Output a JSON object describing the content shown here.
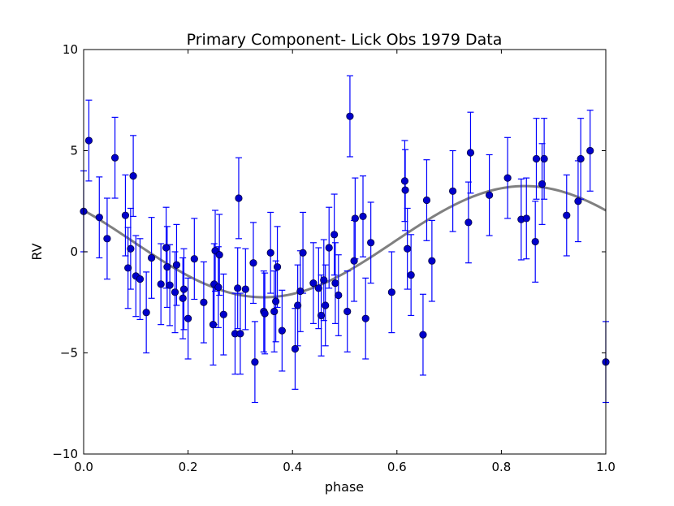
{
  "chart_data": {
    "type": "scatter",
    "title": "Primary Component- Lick Obs 1979 Data",
    "xlabel": "phase",
    "ylabel": "RV",
    "xlim": [
      0.0,
      1.0
    ],
    "ylim": [
      -10,
      10
    ],
    "xticks": [
      0.0,
      0.2,
      0.4,
      0.6,
      0.8,
      1.0
    ],
    "xtick_labels": [
      "0.0",
      "0.2",
      "0.4",
      "0.6",
      "0.8",
      "1.0"
    ],
    "yticks": [
      -10,
      -5,
      0,
      5,
      10
    ],
    "ytick_labels": [
      "−10",
      "−5",
      "0",
      "5",
      "10"
    ],
    "grid": false,
    "colors": {
      "points": "#0000cc",
      "errorbars": "#0000ff",
      "fit": "#808080",
      "axes": "#000000"
    },
    "fit_curve": {
      "offset": 0.5,
      "amplitude": 2.75,
      "phase_of_max": 0.845
    },
    "series": [
      {
        "x": [
          0.0,
          0.01,
          0.03,
          0.045,
          0.06,
          0.08,
          0.085,
          0.09,
          0.095,
          0.1,
          0.108,
          0.12,
          0.13,
          0.148,
          0.158,
          0.16,
          0.165,
          0.175,
          0.178,
          0.19,
          0.192,
          0.2,
          0.212,
          0.23,
          0.248,
          0.25,
          0.252,
          0.258,
          0.26,
          0.268,
          0.29,
          0.295,
          0.297,
          0.3,
          0.31,
          0.325,
          0.328,
          0.345,
          0.347,
          0.358,
          0.365,
          0.368,
          0.371,
          0.38,
          0.405,
          0.41,
          0.415,
          0.42,
          0.44,
          0.45,
          0.455,
          0.46,
          0.463,
          0.47,
          0.48,
          0.482,
          0.488,
          0.505,
          0.51,
          0.518,
          0.52,
          0.535,
          0.54,
          0.55,
          0.59,
          0.615,
          0.616,
          0.62,
          0.627,
          0.65,
          0.657,
          0.667,
          0.707,
          0.737,
          0.741,
          0.777,
          0.812,
          0.838,
          0.848,
          0.865,
          0.867,
          0.878,
          0.882,
          0.925,
          0.947,
          0.952,
          0.97,
          1.0
        ],
        "y": [
          2.0,
          5.5,
          1.7,
          0.65,
          4.65,
          1.8,
          -0.8,
          0.15,
          3.75,
          -1.2,
          -1.35,
          -3.0,
          -0.3,
          -1.6,
          0.2,
          -0.75,
          -1.65,
          -2.0,
          -0.65,
          -2.3,
          -1.85,
          -3.3,
          -0.35,
          -2.5,
          -3.6,
          -1.6,
          0.05,
          -1.75,
          -0.15,
          -3.1,
          -4.05,
          -1.8,
          2.65,
          -4.05,
          -1.85,
          -0.55,
          -5.45,
          -2.95,
          -3.05,
          -0.05,
          -2.95,
          -2.45,
          -0.75,
          -3.9,
          -4.8,
          -2.65,
          -1.95,
          -0.05,
          -1.55,
          -1.8,
          -3.15,
          -1.4,
          -2.65,
          0.2,
          0.85,
          -1.55,
          -2.15,
          -2.95,
          6.7,
          -0.45,
          1.65,
          1.75,
          -3.3,
          0.45,
          -2.0,
          3.5,
          3.05,
          0.15,
          -1.15,
          -4.1,
          2.55,
          -0.45,
          3.0,
          1.45,
          4.9,
          2.8,
          3.65,
          1.6,
          1.65,
          0.5,
          4.6,
          3.35,
          4.6,
          1.8,
          2.5,
          4.6,
          5.0,
          -5.45
        ],
        "yerr": 2.0
      }
    ]
  }
}
